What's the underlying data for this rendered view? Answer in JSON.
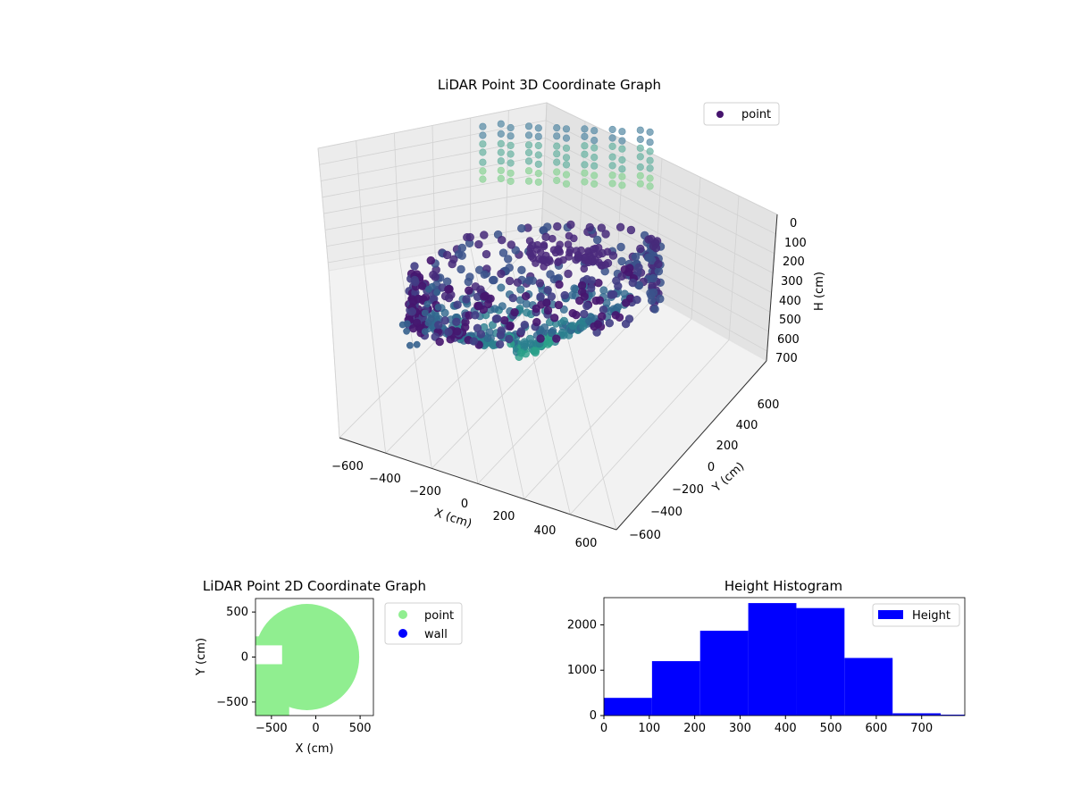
{
  "chart_data": [
    {
      "type": "scatter",
      "projection": "3d",
      "title": "LiDAR Point 3D Coordinate Graph",
      "xlabel": "X (cm)",
      "ylabel": "Y (cm)",
      "zlabel": "H (cm)",
      "xlim": [
        -700,
        650
      ],
      "ylim": [
        -650,
        650
      ],
      "zlim": [
        0,
        750
      ],
      "z_inverted": true,
      "xticks": [
        "−600",
        "−400",
        "−200",
        "0",
        "200",
        "400",
        "600"
      ],
      "yticks": [
        "−600",
        "−400",
        "−200",
        "0",
        "200",
        "400",
        "600"
      ],
      "zticks": [
        "0",
        "100",
        "200",
        "300",
        "400",
        "500",
        "600",
        "700"
      ],
      "colormap": "viridis",
      "legend": {
        "position": "top-right",
        "entries": [
          {
            "label": "point",
            "color": "#46146e"
          }
        ]
      },
      "series": [
        {
          "name": "point",
          "description_values": {
            "wall_ring": {
              "radius": 600,
              "h_range": [
                250,
                550
              ],
              "color": "#4a1f78"
            },
            "floor_cone": {
              "h_range": [
                450,
                750
              ],
              "color": "#2a8c8a"
            },
            "outliers_top": {
              "h_range": [
                0,
                250
              ],
              "color": "#7fc8a0"
            }
          }
        }
      ]
    },
    {
      "type": "scatter",
      "title": "LiDAR Point 2D Coordinate Graph",
      "xlabel": "X (cm)",
      "ylabel": "Y (cm)",
      "xlim": [
        -680,
        650
      ],
      "ylim": [
        -650,
        650
      ],
      "xticks": [
        -500,
        0,
        500
      ],
      "yticks": [
        -500,
        0,
        500
      ],
      "legend": {
        "position": "outside-right",
        "entries": [
          {
            "label": "point",
            "color": "#90ee90"
          },
          {
            "label": "wall",
            "color": "#0000ff"
          }
        ]
      },
      "series": [
        {
          "name": "point",
          "shape": "disc",
          "center": [
            -100,
            0
          ],
          "radius": 590,
          "notch": {
            "x": [
              -680,
              -380
            ],
            "y": [
              -80,
              130
            ]
          }
        }
      ]
    },
    {
      "type": "bar",
      "title": "Height Histogram",
      "xlim": [
        0,
        795
      ],
      "ylim": [
        0,
        2600
      ],
      "xticks": [
        0,
        100,
        200,
        300,
        400,
        500,
        600,
        700
      ],
      "yticks": [
        0,
        1000,
        2000
      ],
      "bin_edges": [
        0,
        106,
        212,
        318,
        424,
        530,
        636,
        742,
        795
      ],
      "values": [
        390,
        1200,
        1870,
        2480,
        2370,
        1270,
        50,
        20
      ],
      "color": "#0000ff",
      "legend": {
        "position": "top-right",
        "entries": [
          {
            "label": "Height",
            "color": "#0000ff"
          }
        ]
      }
    }
  ]
}
